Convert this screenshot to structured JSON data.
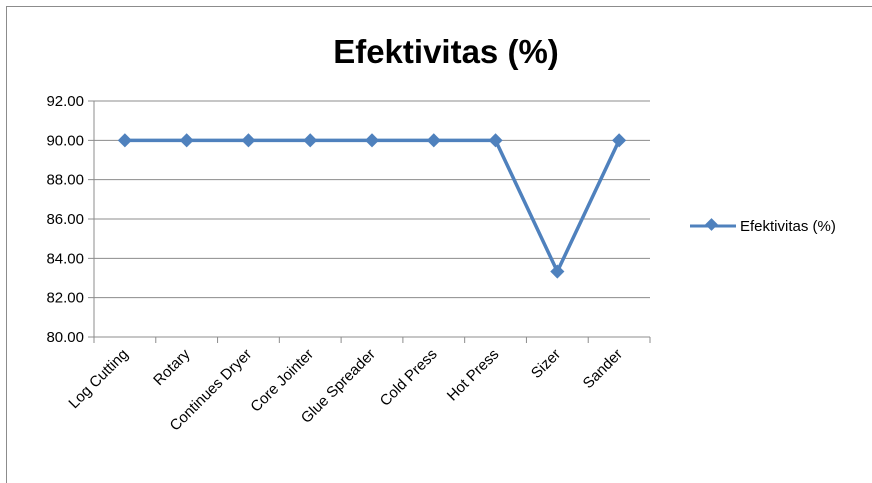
{
  "chart_data": {
    "type": "line",
    "title": "Efektivitas (%)",
    "xlabel": "",
    "ylabel": "",
    "categories": [
      "Log Cutting",
      "Rotary",
      "Continues Dryer",
      "Core Jointer",
      "Glue Spreader",
      "Cold Press",
      "Hot Press",
      "Sizer",
      "Sander"
    ],
    "series": [
      {
        "name": "Efektivitas (%)",
        "values": [
          90.0,
          90.0,
          90.0,
          90.0,
          90.0,
          90.0,
          90.0,
          83.33,
          90.0
        ]
      }
    ],
    "ylim": [
      80,
      92
    ],
    "yticks": [
      "80.00",
      "82.00",
      "84.00",
      "86.00",
      "88.00",
      "90.00",
      "92.00"
    ],
    "grid": true,
    "legend_position": "right",
    "colors": {
      "series": "#4f81bd",
      "grid": "#8c8c8c",
      "axis": "#8c8c8c"
    }
  }
}
